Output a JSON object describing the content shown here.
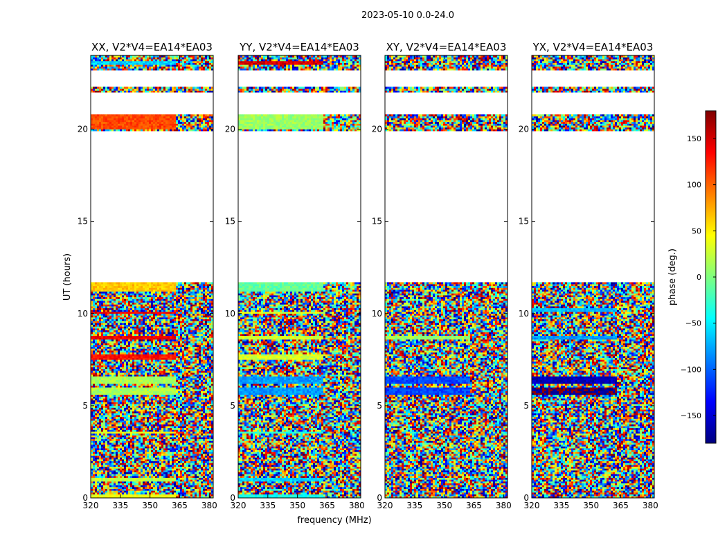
{
  "figure": {
    "suptitle": "2023-05-10 0.0-24.0",
    "xlabel": "frequency (MHz)",
    "ylabel": "UT (hours)",
    "colorbar_label": "phase (deg.)"
  },
  "colormap": {
    "name": "jet",
    "range": [
      -180,
      180
    ],
    "ticks": [
      -150,
      -100,
      -50,
      0,
      50,
      100,
      150
    ],
    "tick_labels": [
      "−150",
      "−100",
      "−50",
      "0",
      "50",
      "100",
      "150"
    ],
    "stops": [
      "#00007f",
      "#0000ff",
      "#007fff",
      "#00ffff",
      "#7fff7f",
      "#ffff00",
      "#ff7f00",
      "#ff0000",
      "#7f0000"
    ]
  },
  "chart_data": [
    {
      "type": "heatmap",
      "title": "XX, V2*V4=EA14*EA03",
      "xlim": [
        320,
        382
      ],
      "ylim": [
        0,
        24
      ],
      "xticks": [
        320,
        335,
        350,
        365,
        380
      ],
      "yticks": [
        0,
        5,
        10,
        15,
        20
      ],
      "value": "phase (deg.)",
      "flagged_ut_ranges": [
        [
          11.7,
          19.9
        ],
        [
          20.85,
          22.05
        ],
        [
          22.3,
          23.2
        ]
      ],
      "coherent_bands": [
        {
          "ut": [
            23.55,
            23.75
          ],
          "phase": -60
        },
        {
          "ut": [
            20.0,
            20.8
          ],
          "phase": 110
        },
        {
          "ut": [
            11.2,
            11.65
          ],
          "phase": 65
        },
        {
          "ut": [
            9.95,
            10.1
          ],
          "phase": 140
        },
        {
          "ut": [
            8.55,
            8.75
          ],
          "phase": 140
        },
        {
          "ut": [
            7.5,
            7.75
          ],
          "phase": 130
        },
        {
          "ut": [
            6.2,
            6.55
          ],
          "phase": 15
        },
        {
          "ut": [
            5.6,
            5.95
          ],
          "phase": 15
        },
        {
          "ut": [
            3.5,
            3.65
          ],
          "phase": 40
        },
        {
          "ut": [
            0.9,
            1.1
          ],
          "phase": 20
        },
        {
          "ut": [
            0.05,
            0.2
          ],
          "phase": 40
        }
      ]
    },
    {
      "type": "heatmap",
      "title": "YY, V2*V4=EA14*EA03",
      "xlim": [
        320,
        382
      ],
      "ylim": [
        0,
        24
      ],
      "xticks": [
        320,
        335,
        350,
        365,
        380
      ],
      "yticks": [
        0,
        5,
        10,
        15,
        20
      ],
      "value": "phase (deg.)",
      "flagged_ut_ranges": [
        [
          11.7,
          19.9
        ],
        [
          20.85,
          22.05
        ],
        [
          22.3,
          23.2
        ]
      ],
      "coherent_bands": [
        {
          "ut": [
            23.55,
            23.75
          ],
          "phase": 150
        },
        {
          "ut": [
            20.0,
            20.8
          ],
          "phase": 10
        },
        {
          "ut": [
            11.2,
            11.65
          ],
          "phase": -10
        },
        {
          "ut": [
            9.95,
            10.1
          ],
          "phase": 30
        },
        {
          "ut": [
            8.55,
            8.75
          ],
          "phase": 30
        },
        {
          "ut": [
            7.5,
            7.75
          ],
          "phase": 30
        },
        {
          "ut": [
            6.2,
            6.55
          ],
          "phase": -80
        },
        {
          "ut": [
            5.6,
            5.95
          ],
          "phase": -80
        },
        {
          "ut": [
            3.5,
            3.65
          ],
          "phase": -30
        },
        {
          "ut": [
            0.9,
            1.1
          ],
          "phase": -60
        },
        {
          "ut": [
            0.05,
            0.2
          ],
          "phase": -40
        }
      ]
    },
    {
      "type": "heatmap",
      "title": "XY, V2*V4=EA14*EA03",
      "xlim": [
        320,
        382
      ],
      "ylim": [
        0,
        24
      ],
      "xticks": [
        320,
        335,
        350,
        365,
        380
      ],
      "yticks": [
        0,
        5,
        10,
        15,
        20
      ],
      "value": "phase (deg.)",
      "flagged_ut_ranges": [
        [
          11.7,
          19.9
        ],
        [
          20.85,
          22.05
        ],
        [
          22.3,
          23.2
        ]
      ],
      "coherent_bands": [
        {
          "ut": [
            8.55,
            8.75
          ],
          "phase": 10
        },
        {
          "ut": [
            6.2,
            6.55
          ],
          "phase": -110
        },
        {
          "ut": [
            5.6,
            5.95
          ],
          "phase": -110
        }
      ]
    },
    {
      "type": "heatmap",
      "title": "YX, V2*V4=EA14*EA03",
      "xlim": [
        320,
        382
      ],
      "ylim": [
        0,
        24
      ],
      "xticks": [
        320,
        335,
        350,
        365,
        380
      ],
      "yticks": [
        0,
        5,
        10,
        15,
        20
      ],
      "value": "phase (deg.)",
      "flagged_ut_ranges": [
        [
          11.7,
          19.9
        ],
        [
          20.85,
          22.05
        ],
        [
          22.3,
          23.2
        ]
      ],
      "coherent_bands": [
        {
          "ut": [
            10.1,
            10.25
          ],
          "phase": -70
        },
        {
          "ut": [
            8.55,
            8.75
          ],
          "phase": -80
        },
        {
          "ut": [
            6.2,
            6.55
          ],
          "phase": -160
        },
        {
          "ut": [
            5.6,
            5.95
          ],
          "phase": -175
        }
      ]
    }
  ]
}
